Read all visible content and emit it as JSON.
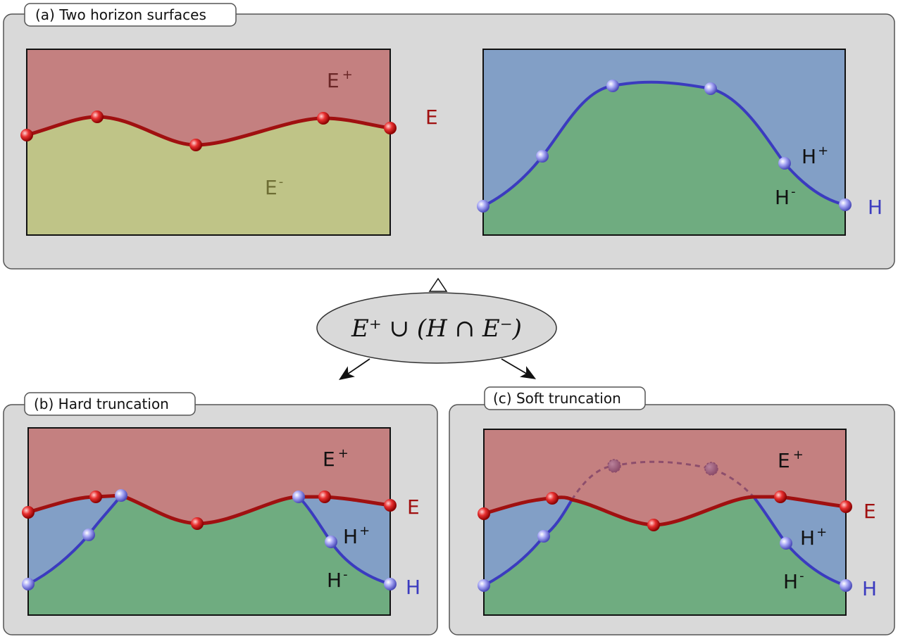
{
  "colors": {
    "e_above": "#c48080",
    "e_below": "#bfc487",
    "h_above": "#829fc6",
    "h_below": "#6fac80",
    "e_curve": "#a01010",
    "h_curve": "#3b3bbf",
    "e_node": "#e02020",
    "h_node": "#9a9af0",
    "panel": "#d9d9d9"
  },
  "panels": {
    "a": {
      "title": "(a) Two horizon surfaces"
    },
    "b": {
      "title": "(b) Hard truncation"
    },
    "c": {
      "title": "(c)  Soft truncation"
    }
  },
  "labels": {
    "e": "E",
    "h": "H",
    "sup_plus": "+",
    "sup_minus": "-"
  },
  "formula": {
    "text": "E⁺ ∪ (H ∩ E⁻)"
  }
}
